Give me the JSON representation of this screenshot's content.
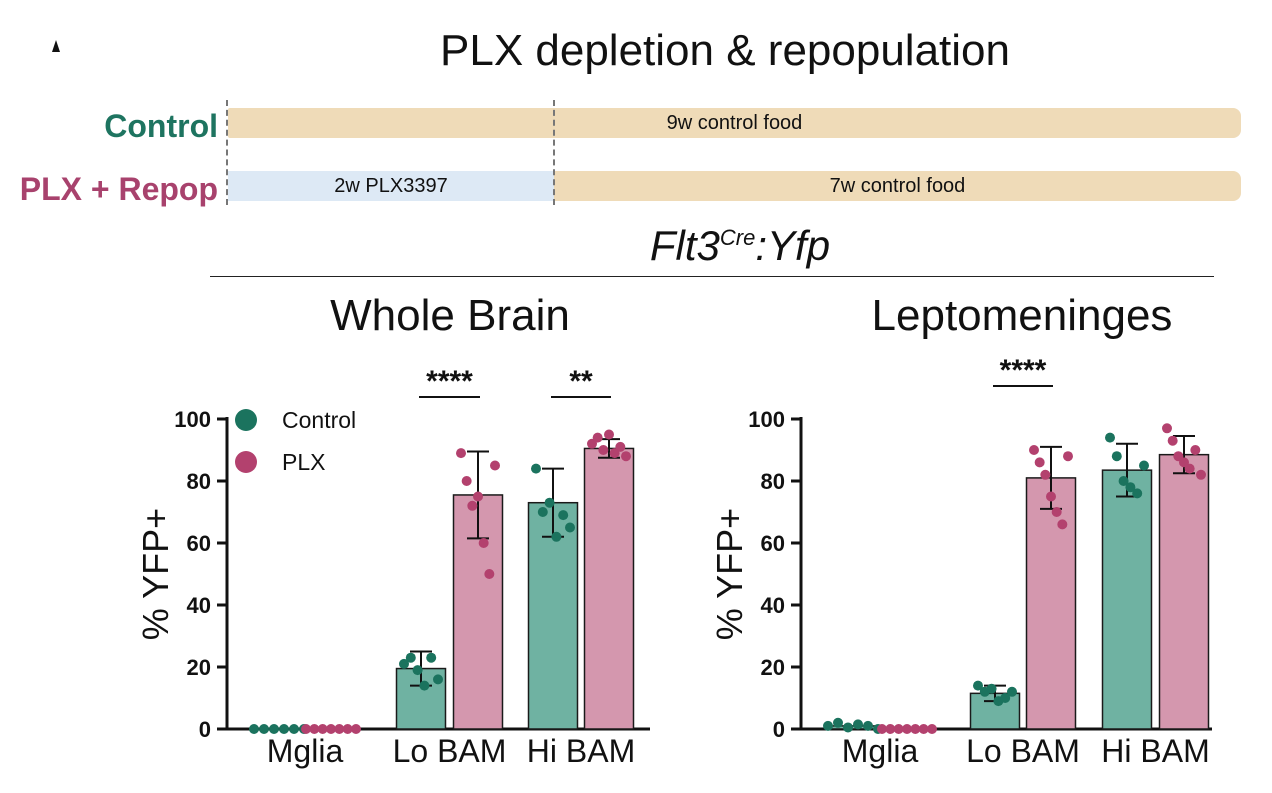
{
  "title": "PLX depletion & repopulation",
  "timeline": {
    "control_label": "Control",
    "plx_label": "PLX + Repop",
    "control_bar": "9w control food",
    "plx_bar_1": "2w PLX3397",
    "plx_bar_2": "7w control food"
  },
  "genotype": {
    "main": "Flt3",
    "sup": "Cre",
    "suffix": ":Yfp"
  },
  "colors": {
    "control": "#6fb2a2",
    "control_dot": "#1b735e",
    "plx": "#d497ae",
    "plx_dot": "#b3416e",
    "control_text": "#1e7460",
    "plx_text": "#a8426d"
  },
  "chart_data": [
    {
      "type": "bar",
      "title": "Whole Brain",
      "ylabel": "% YFP+",
      "ylim": [
        0,
        100
      ],
      "yticks": [
        "0",
        "20",
        "40",
        "60",
        "80",
        "100"
      ],
      "categories": [
        "Mglia",
        "Lo BAM",
        "Hi BAM"
      ],
      "legend": [
        "Control",
        "PLX"
      ],
      "series": [
        {
          "name": "Control",
          "values": [
            0,
            19.5,
            73
          ],
          "err": [
            0,
            5.5,
            11
          ],
          "points": [
            [
              0,
              0,
              0,
              0,
              0,
              0
            ],
            [
              21,
              23,
              19,
              14,
              23,
              16
            ],
            [
              84,
              70,
              73,
              62,
              69,
              65
            ]
          ]
        },
        {
          "name": "PLX",
          "values": [
            0,
            75.5,
            90.5
          ],
          "err": [
            0,
            14,
            3
          ],
          "points": [
            [
              0,
              0,
              0,
              0,
              0,
              0,
              0
            ],
            [
              89,
              80,
              72,
              75,
              60,
              50,
              85
            ],
            [
              92,
              94,
              90,
              95,
              89,
              91,
              88
            ]
          ]
        }
      ],
      "significance": [
        {
          "label": "****",
          "group": 1
        },
        {
          "label": "**",
          "group": 2
        }
      ]
    },
    {
      "type": "bar",
      "title": "Leptomeninges",
      "ylabel": "% YFP+",
      "ylim": [
        0,
        100
      ],
      "yticks": [
        "0",
        "20",
        "40",
        "60",
        "80",
        "100"
      ],
      "categories": [
        "Mglia",
        "Lo BAM",
        "Hi BAM"
      ],
      "legend": [],
      "series": [
        {
          "name": "Control",
          "values": [
            1,
            11.5,
            83.5
          ],
          "err": [
            0.5,
            2.5,
            8.5
          ],
          "points": [
            [
              1,
              2,
              0.5,
              1.5,
              1,
              0
            ],
            [
              14,
              12,
              13,
              9,
              10,
              12
            ],
            [
              94,
              88,
              80,
              78,
              76,
              85
            ]
          ]
        },
        {
          "name": "PLX",
          "values": [
            0,
            81,
            88.5
          ],
          "err": [
            0,
            10,
            6
          ],
          "points": [
            [
              0,
              0,
              0,
              0,
              0,
              0,
              0
            ],
            [
              90,
              86,
              82,
              75,
              70,
              66,
              88
            ],
            [
              97,
              93,
              88,
              86,
              84,
              90,
              82
            ]
          ]
        }
      ],
      "significance": [
        {
          "label": "****",
          "group": 1
        }
      ]
    }
  ]
}
